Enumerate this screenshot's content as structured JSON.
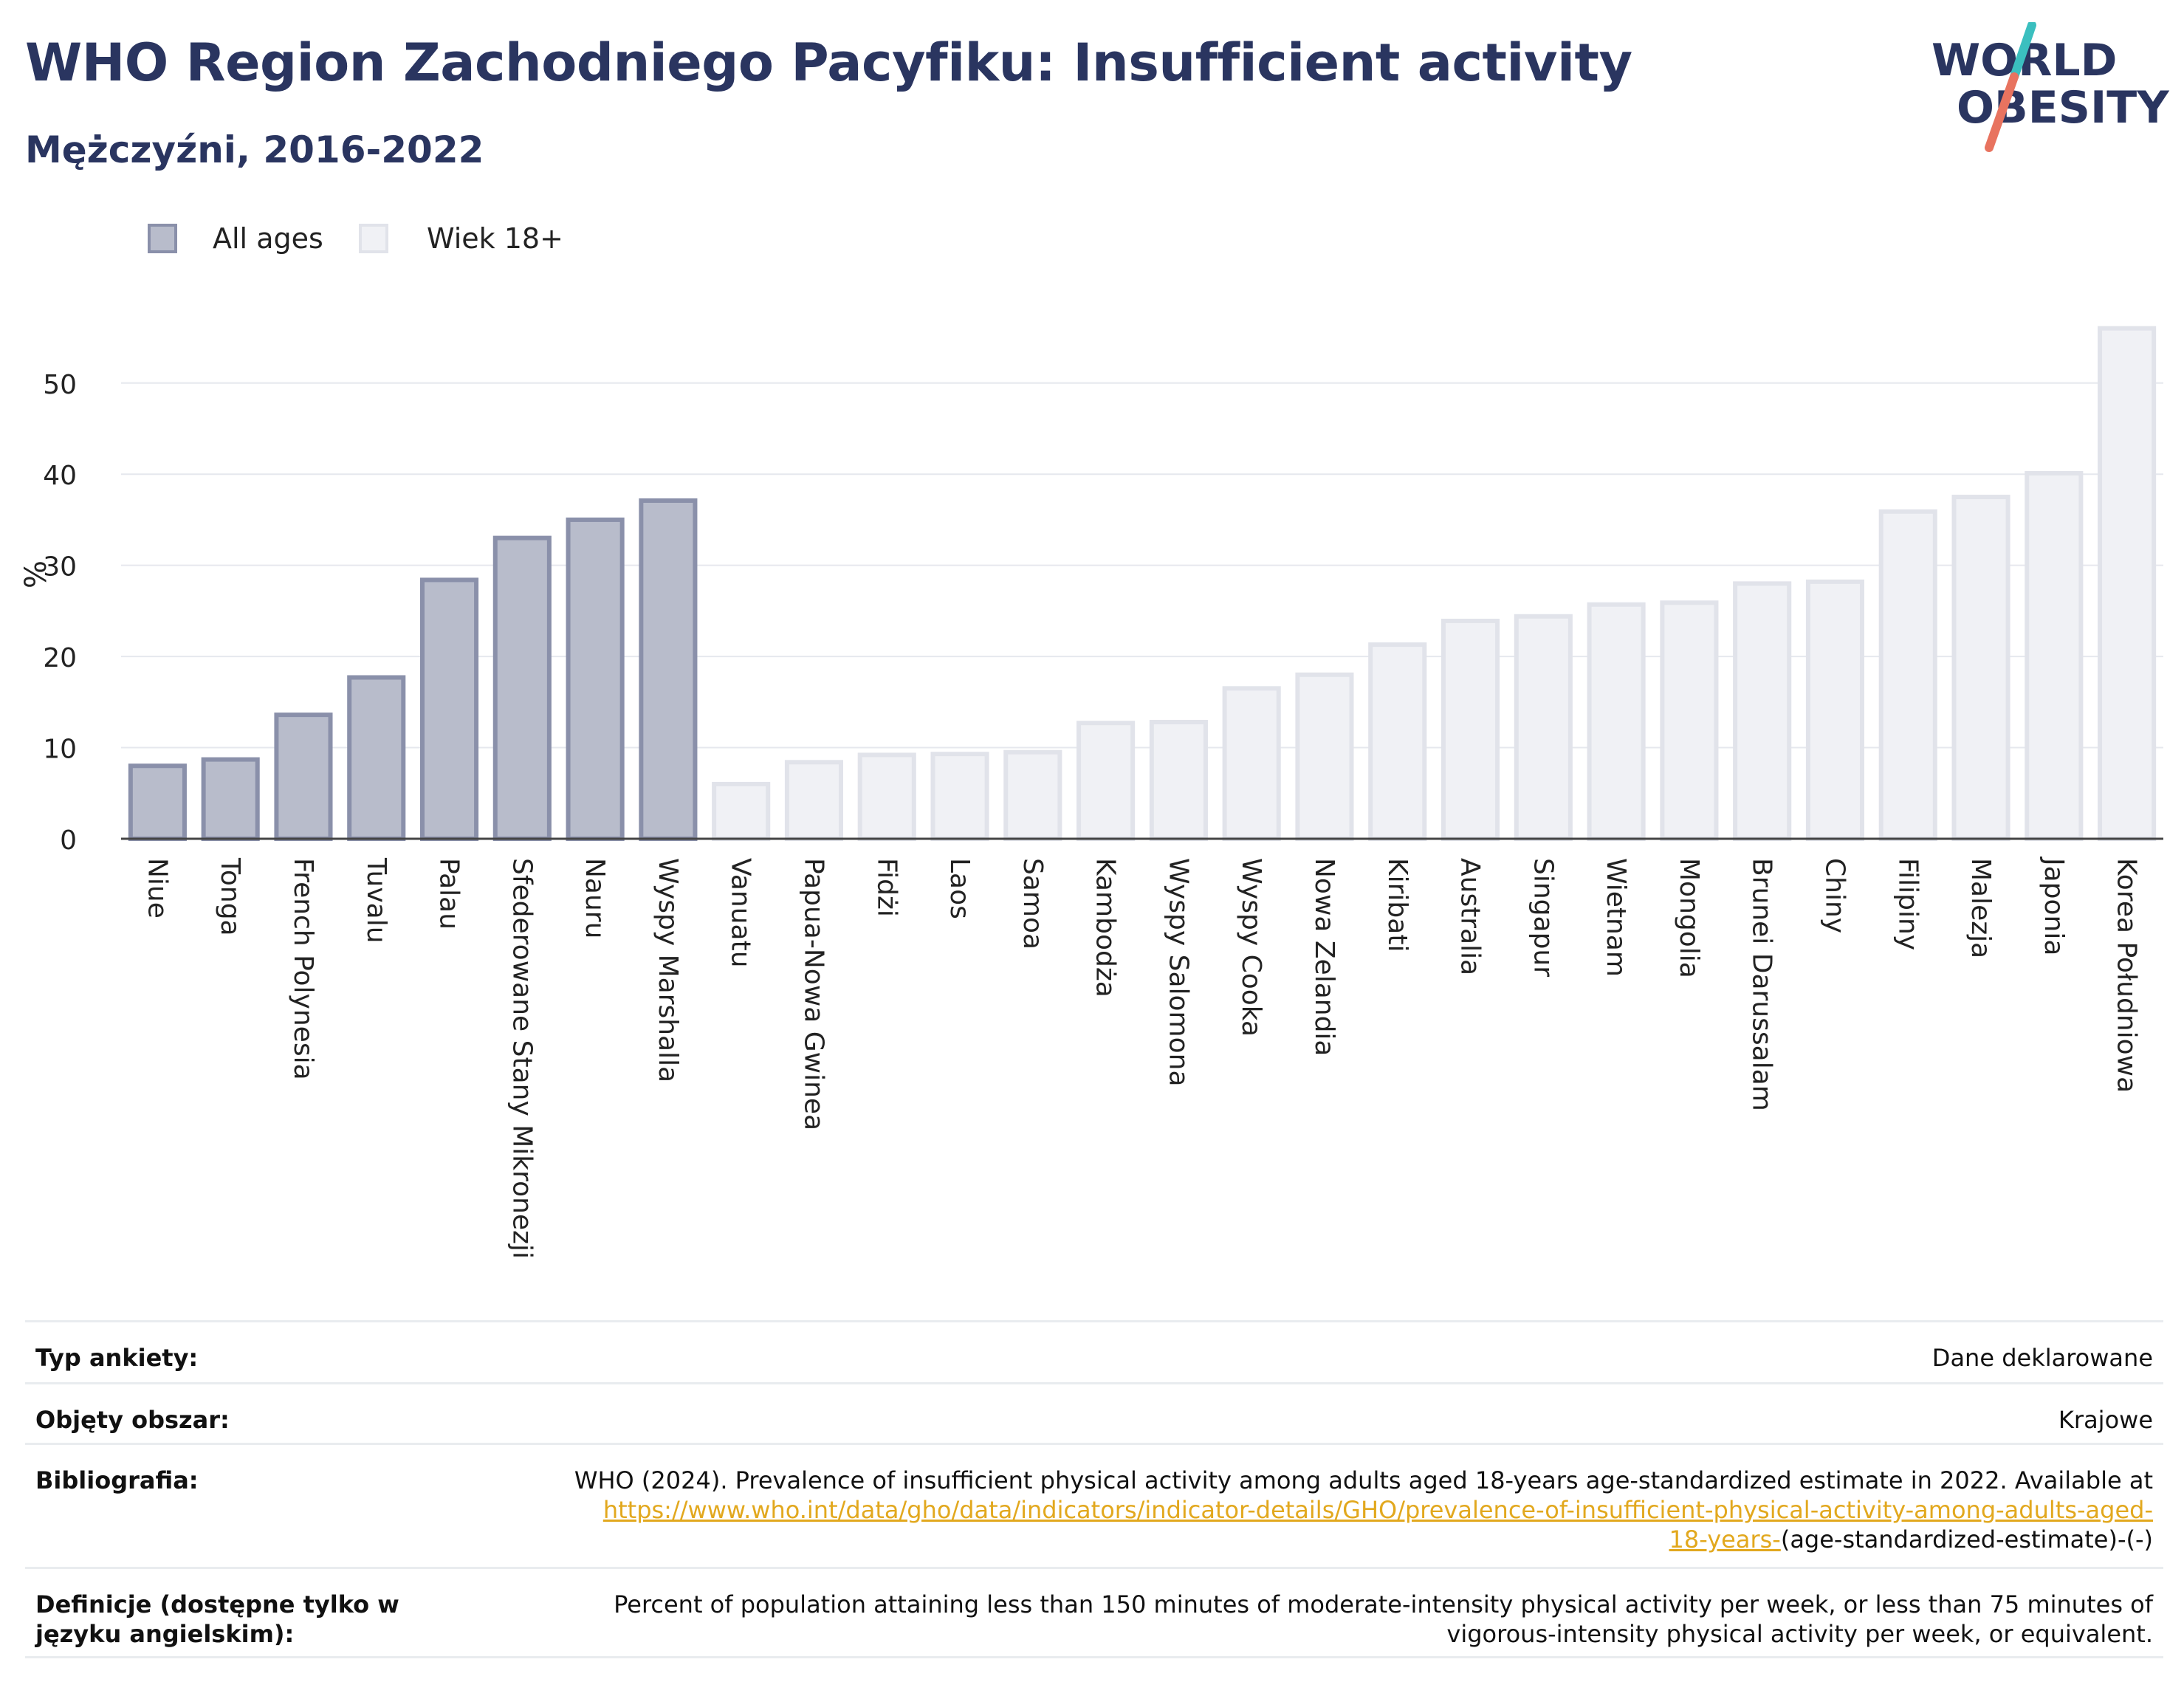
{
  "header": {
    "title": "WHO Region Zachodniego Pacyfiku: Insufficient activity",
    "subtitle": "Mężczyźni, 2016-2022"
  },
  "logo": {
    "line1": "WORLD",
    "line2": "OBESITY"
  },
  "colors": {
    "primary": "#2a3560",
    "all_ages_fill": "#b8bccb",
    "all_ages_stroke": "#8a90aa",
    "adult_fill": "#f0f1f5",
    "adult_stroke": "#e1e3ea",
    "logo_teal": "#3bbfbf",
    "logo_coral": "#e8735f",
    "link": "#e2a81e"
  },
  "chart_data": {
    "type": "bar",
    "title": "WHO Region Zachodniego Pacyfiku: Insufficient activity",
    "ylabel": "%",
    "ylim": [
      0,
      58
    ],
    "yticks": [
      0,
      10,
      20,
      30,
      40,
      50
    ],
    "grid": true,
    "legend_position": "top-left",
    "series": [
      {
        "name": "All ages",
        "categories": [
          "Niue",
          "Tonga",
          "French Polynesia",
          "Tuvalu",
          "Palau",
          "Sfederowane Stany Mikronezji",
          "Nauru",
          "Wyspy Marshalla"
        ],
        "values": [
          8.0,
          8.7,
          13.6,
          17.7,
          28.4,
          33.0,
          35.0,
          37.1
        ]
      },
      {
        "name": "Wiek 18+",
        "categories": [
          "Vanuatu",
          "Papua-Nowa Gwinea",
          "Fidżi",
          "Laos",
          "Samoa",
          "Kambodża",
          "Wyspy Salomona",
          "Wyspy Cooka",
          "Nowa Zelandia",
          "Kiribati",
          "Australia",
          "Singapur",
          "Wietnam",
          "Mongolia",
          "Brunei Darussalam",
          "Chiny",
          "Filipiny",
          "Malezja",
          "Japonia",
          "Korea Południowa"
        ],
        "values": [
          6.0,
          8.4,
          9.2,
          9.3,
          9.5,
          12.7,
          12.8,
          16.5,
          18.0,
          21.3,
          23.9,
          24.4,
          25.7,
          25.9,
          28.0,
          28.2,
          35.9,
          37.5,
          40.1,
          56.0
        ]
      }
    ]
  },
  "info": {
    "survey_type_label": "Typ ankiety:",
    "survey_type_value": "Dane deklarowane",
    "coverage_label": "Objęty obszar:",
    "coverage_value": "Krajowe",
    "bibliography_label": "Bibliografia:",
    "bibliography_text": "WHO (2024). Prevalence of insufficient physical activity among adults aged 18-years age-standardized estimate in 2022. Available at",
    "bibliography_link_1": "https://www.who.int/data/gho/data/indicators/indicator-details/GHO/prevalence-of-insufficient-physical-activity-among-adults-aged-",
    "bibliography_link_2": "18-years-",
    "bibliography_tail": "(age-standardized-estimate)-(-)",
    "definitions_label": "Definicje (dostępne tylko w języku angielskim):",
    "definitions_line_1": "Percent of population attaining less than 150 minutes of moderate-intensity physical activity per week, or less than 75 minutes of",
    "definitions_line_2": "vigorous-intensity physical activity per week, or equivalent."
  }
}
